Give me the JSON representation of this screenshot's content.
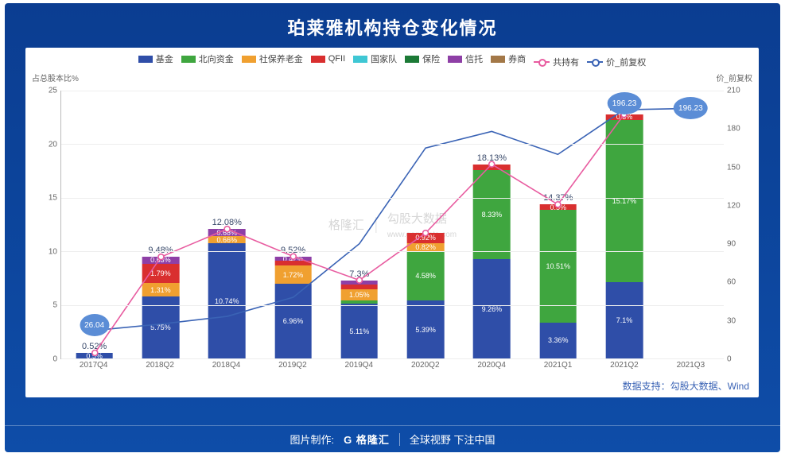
{
  "title": "珀莱雅机构持仓变化情况",
  "legend": [
    {
      "label": "基金",
      "color": "#2f4ea8",
      "type": "box"
    },
    {
      "label": "北向资金",
      "color": "#3fa63f",
      "type": "box"
    },
    {
      "label": "社保养老金",
      "color": "#f0a030",
      "type": "box"
    },
    {
      "label": "QFII",
      "color": "#d92f2f",
      "type": "box"
    },
    {
      "label": "国家队",
      "color": "#3fc7d4",
      "type": "box"
    },
    {
      "label": "保险",
      "color": "#1c7a36",
      "type": "box"
    },
    {
      "label": "信托",
      "color": "#8e3fa6",
      "type": "box"
    },
    {
      "label": "券商",
      "color": "#a37848",
      "type": "box"
    },
    {
      "label": "共持有",
      "color": "#e85ca0",
      "type": "line"
    },
    {
      "label": "价_前复权",
      "color": "#3a63b5",
      "type": "line"
    }
  ],
  "yLeft": {
    "label": "占总股本比%",
    "min": 0,
    "max": 25,
    "step": 5
  },
  "yRight": {
    "label": "价_前复权",
    "min": 0,
    "max": 210,
    "step": 30
  },
  "categories": [
    "2017Q4",
    "2018Q2",
    "2018Q4",
    "2019Q2",
    "2019Q4",
    "2020Q2",
    "2020Q4",
    "2021Q1",
    "2021Q2",
    "2021Q3"
  ],
  "series_colors": {
    "基金": "#2f4ea8",
    "北向资金": "#3fa63f",
    "社保养老金": "#f0a030",
    "QFII": "#d92f2f",
    "信托": "#8e3fa6",
    "券商": "#a37848",
    "保险": "#1c7a36"
  },
  "stacks": [
    {
      "total": "0.52%",
      "segs": [
        {
          "k": "基金",
          "v": 0.52,
          "t": "0.5%"
        }
      ]
    },
    {
      "total": "9.48%",
      "segs": [
        {
          "k": "基金",
          "v": 5.75,
          "t": "5.75%"
        },
        {
          "k": "社保养老金",
          "v": 1.31,
          "t": "1.31%"
        },
        {
          "k": "QFII",
          "v": 1.79,
          "t": "1.79%"
        },
        {
          "k": "信托",
          "v": 0.63,
          "t": "0.63%"
        }
      ]
    },
    {
      "total": "12.08%",
      "segs": [
        {
          "k": "基金",
          "v": 10.74,
          "t": "10.74%"
        },
        {
          "k": "社保养老金",
          "v": 0.66,
          "t": "0.66%"
        },
        {
          "k": "信托",
          "v": 0.68,
          "t": "0.68%"
        }
      ]
    },
    {
      "total": "9.52%",
      "segs": [
        {
          "k": "基金",
          "v": 6.96,
          "t": "6.96%"
        },
        {
          "k": "社保养老金",
          "v": 1.72,
          "t": "1.72%"
        },
        {
          "k": "QFII",
          "v": 0.42,
          "t": ""
        },
        {
          "k": "信托",
          "v": 0.42,
          "t": "0.42%"
        }
      ]
    },
    {
      "total": "7.3%",
      "segs": [
        {
          "k": "基金",
          "v": 5.11,
          "t": "5.11%"
        },
        {
          "k": "北向资金",
          "v": 0.32,
          "t": ""
        },
        {
          "k": "社保养老金",
          "v": 1.05,
          "t": "1.05%"
        },
        {
          "k": "QFII",
          "v": 0.42,
          "t": ""
        },
        {
          "k": "信托",
          "v": 0.4,
          "t": ""
        }
      ]
    },
    {
      "total": "",
      "segs": [
        {
          "k": "基金",
          "v": 5.39,
          "t": "5.39%"
        },
        {
          "k": "北向资金",
          "v": 4.58,
          "t": "4.58%"
        },
        {
          "k": "社保养老金",
          "v": 0.82,
          "t": "0.82%"
        },
        {
          "k": "QFII",
          "v": 0.92,
          "t": "0.92%"
        }
      ]
    },
    {
      "total": "18.13%",
      "segs": [
        {
          "k": "基金",
          "v": 9.26,
          "t": "9.26%"
        },
        {
          "k": "北向资金",
          "v": 8.33,
          "t": "8.33%"
        },
        {
          "k": "QFII",
          "v": 0.54,
          "t": ""
        }
      ]
    },
    {
      "total": "14.37%",
      "segs": [
        {
          "k": "基金",
          "v": 3.36,
          "t": "3.36%"
        },
        {
          "k": "北向资金",
          "v": 10.51,
          "t": "10.51%"
        },
        {
          "k": "QFII",
          "v": 0.5,
          "t": "0.5%"
        }
      ]
    },
    {
      "total": "22.77%",
      "segs": [
        {
          "k": "基金",
          "v": 7.1,
          "t": "7.1%"
        },
        {
          "k": "北向资金",
          "v": 15.17,
          "t": "15.17%"
        },
        {
          "k": "QFII",
          "v": 0.5,
          "t": "0.5%"
        }
      ]
    },
    {
      "total": "",
      "segs": []
    }
  ],
  "line_total": [
    0.52,
    9.48,
    12.08,
    9.52,
    7.3,
    11.71,
    18.13,
    14.37,
    22.77,
    null
  ],
  "line_price": [
    22,
    27,
    33,
    48,
    90,
    165,
    178,
    160,
    195,
    196
  ],
  "bubbles": [
    {
      "i": 0,
      "text": "26.04",
      "axis": "right",
      "val": 26
    },
    {
      "i": 8,
      "text": "196.23",
      "axis": "right",
      "val": 200
    },
    {
      "i": 9,
      "text": "196.23",
      "axis": "right",
      "val": 196
    }
  ],
  "source": "数据支持：勾股大数据、Wind",
  "watermark_left": "格隆汇",
  "watermark_right": "勾股大数据",
  "watermark_url": "www.gogudata.com",
  "footer": {
    "prefix": "图片制作:",
    "logo": "G 格隆汇",
    "tag": "全球视野 下注中国"
  }
}
